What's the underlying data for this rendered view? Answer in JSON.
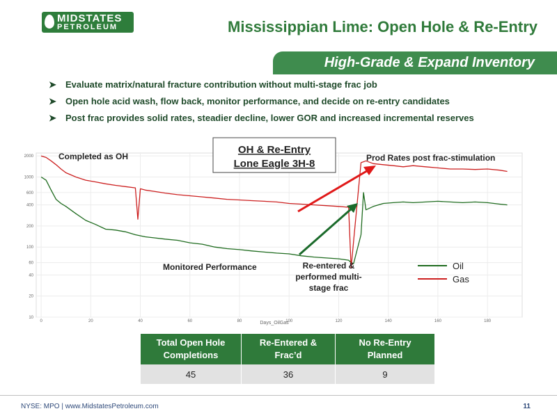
{
  "logo": {
    "line1": "MIDSTATES",
    "line2": "PETROLEUM"
  },
  "title": "Mississippian Lime: Open Hole & Re-Entry",
  "subtitle": "High-Grade & Expand Inventory",
  "bullets": [
    "Evaluate matrix/natural fracture contribution without multi-stage frac job",
    "Open hole acid wash, flow back, monitor performance, and decide on re-entry candidates",
    "Post frac provides solid rates, steadier decline, lower GOR and increased incremental reserves"
  ],
  "chart_data": {
    "type": "line",
    "title": "OH & Re-Entry\nLone Eagle 3H-8",
    "title_lines": [
      "OH & Re-Entry",
      "Lone Eagle 3H-8"
    ],
    "xlabel": "Days_OilGas",
    "x_ticks": [
      0,
      20,
      40,
      60,
      80,
      100,
      120,
      140,
      160,
      180
    ],
    "y_ticks": [
      10,
      20,
      40,
      60,
      100,
      200,
      400,
      600,
      1000,
      2000
    ],
    "xlim": [
      -2,
      194
    ],
    "ylim": [
      10,
      2200
    ],
    "y_scale": "log",
    "grid": true,
    "legend_position": "right",
    "series": [
      {
        "name": "Oil",
        "color": "#1e6b1e",
        "x": [
          0,
          2,
          4,
          6,
          8,
          10,
          14,
          18,
          22,
          26,
          30,
          34,
          38,
          42,
          46,
          50,
          55,
          60,
          65,
          70,
          75,
          80,
          85,
          90,
          95,
          100,
          105,
          110,
          115,
          120,
          124,
          125,
          126,
          129,
          130,
          131,
          134,
          138,
          142,
          146,
          150,
          155,
          160,
          165,
          170,
          175,
          180,
          185,
          188
        ],
        "y": [
          1000,
          900,
          650,
          480,
          420,
          380,
          300,
          240,
          210,
          180,
          175,
          165,
          150,
          140,
          135,
          130,
          125,
          115,
          110,
          100,
          95,
          92,
          88,
          85,
          82,
          80,
          75,
          72,
          70,
          68,
          65,
          60,
          58,
          150,
          600,
          340,
          380,
          420,
          430,
          440,
          430,
          440,
          450,
          440,
          430,
          440,
          430,
          410,
          400
        ]
      },
      {
        "name": "Gas",
        "color": "#cc1f1f",
        "x": [
          0,
          2,
          4,
          6,
          8,
          10,
          14,
          18,
          22,
          26,
          30,
          34,
          38,
          39,
          40,
          42,
          46,
          50,
          55,
          60,
          65,
          70,
          75,
          80,
          85,
          90,
          95,
          100,
          105,
          110,
          115,
          120,
          124,
          125,
          126,
          129,
          131,
          134,
          138,
          142,
          146,
          150,
          155,
          160,
          165,
          170,
          175,
          180,
          185,
          188
        ],
        "y": [
          2000,
          1900,
          1700,
          1500,
          1300,
          1150,
          1000,
          900,
          850,
          800,
          760,
          730,
          700,
          250,
          680,
          650,
          620,
          590,
          560,
          540,
          520,
          500,
          480,
          470,
          460,
          450,
          440,
          420,
          410,
          400,
          390,
          380,
          370,
          50,
          120,
          1600,
          1700,
          1550,
          1500,
          1450,
          1400,
          1450,
          1400,
          1350,
          1300,
          1300,
          1280,
          1300,
          1250,
          1200
        ]
      }
    ],
    "annotations": [
      {
        "text": "Completed as OH",
        "x": 12,
        "y": 1850
      },
      {
        "text": "Prod Rates post frac-stimulation",
        "x": 150,
        "y": 1900
      },
      {
        "text": "Monitored Performance",
        "x": 71,
        "y": 48
      },
      {
        "text": "Re-entered &\nperformed multi-\nstage frac",
        "x": 131,
        "y": 45
      }
    ]
  },
  "chart_labels": {
    "completed": "Completed as OH",
    "prod_rates": "Prod Rates post frac-stimulation",
    "monitored": "Monitored Performance",
    "reentered_1": "Re-entered &",
    "reentered_2": "performed multi-",
    "reentered_3": "stage frac"
  },
  "table": {
    "headers": [
      [
        "Total Open Hole",
        "Completions"
      ],
      [
        "Re-Entered &",
        "Frac’d"
      ],
      [
        "No Re-Entry",
        "Planned"
      ]
    ],
    "values": [
      "45",
      "36",
      "9"
    ]
  },
  "footer": {
    "ticker": "NYSE: MPO | www.MidstatesPetroleum.com",
    "page": "11"
  },
  "colors": {
    "brand_green": "#2f7a3a",
    "oil": "#1e6b1e",
    "gas": "#cc1f1f",
    "arrow_red": "#e01818",
    "arrow_green": "#1a6a2a"
  }
}
